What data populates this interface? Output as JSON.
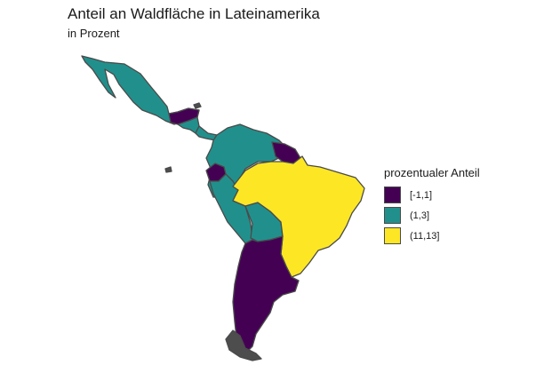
{
  "title": "Anteil an Waldfläche in Lateinamerika",
  "subtitle": "in Prozent",
  "legend": {
    "title": "prozentualer Anteil",
    "placement": "right",
    "items": [
      {
        "label": "[-1,1]",
        "color": "#440154"
      },
      {
        "label": "(1,3]",
        "color": "#21908C"
      },
      {
        "label": "(11,13]",
        "color": "#FDE725"
      }
    ]
  },
  "regions": [
    {
      "name": "mexico",
      "class": "(1,3]"
    },
    {
      "name": "central-america-north",
      "class": "[-1,1]"
    },
    {
      "name": "central-america-south",
      "class": "(1,3]"
    },
    {
      "name": "panama",
      "class": "(1,3]"
    },
    {
      "name": "colombia-venezuela",
      "class": "(1,3]"
    },
    {
      "name": "guianas",
      "class": "[-1,1]"
    },
    {
      "name": "ecuador",
      "class": "[-1,1]"
    },
    {
      "name": "peru",
      "class": "(1,3]"
    },
    {
      "name": "bolivia",
      "class": "(1,3]"
    },
    {
      "name": "brazil",
      "class": "(11,13]"
    },
    {
      "name": "southern-cone",
      "class": "[-1,1]"
    },
    {
      "name": "tierra-del-fuego",
      "class": "[-1,1]"
    }
  ]
}
